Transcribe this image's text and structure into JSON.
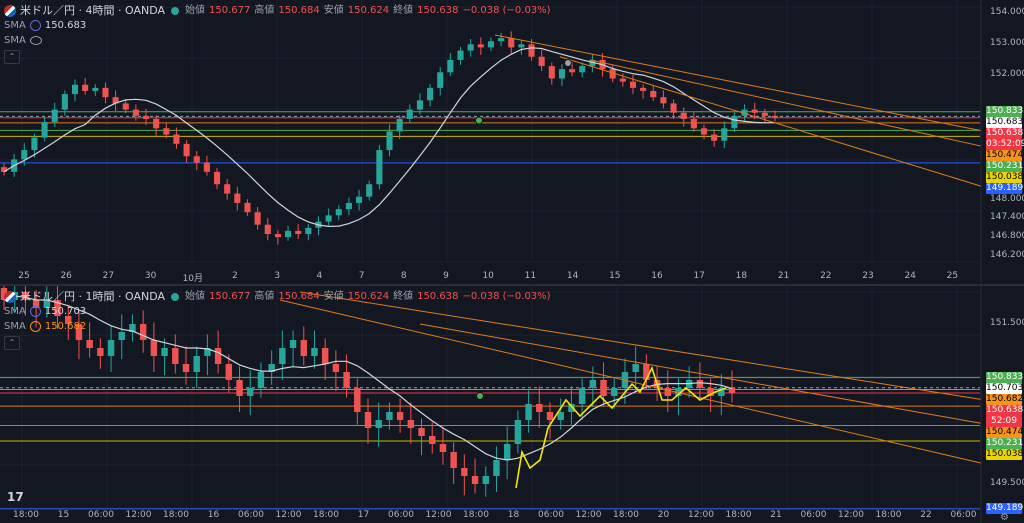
{
  "colors": {
    "bg": "#131722",
    "grid": "#1e222d",
    "up": "#26a69a",
    "down": "#ef5350",
    "sma": "#d1d4dc",
    "trend": "#e07d16",
    "yellow": "#c5b800",
    "blue": "#2962ff",
    "red_line": "#f23645",
    "green_line": "#4caf50",
    "dash": "#9aa0ab",
    "zigzag": "#f5e900"
  },
  "top_pane": {
    "title": "米ドル／円 · 4時間 · OANDA",
    "ohlc": {
      "open_label": "始値",
      "open": "150.677",
      "high_label": "高値",
      "high": "150.684",
      "low_label": "安値",
      "low": "150.624",
      "close_label": "終値",
      "close": "150.638",
      "change": "−0.038 (−0.03%)"
    },
    "sma1": {
      "label": "SMA",
      "value": "150.683"
    },
    "sma2": {
      "label": "SMA"
    },
    "collapse_glyph": "⌃",
    "y_ticks": [
      "154.000",
      "153.000",
      "152.000",
      "148.000",
      "147.400",
      "146.800",
      "146.200"
    ],
    "x_ticks": [
      "25",
      "26",
      "27",
      "30",
      "10月",
      "2",
      "3",
      "4",
      "7",
      "8",
      "9",
      "10",
      "11",
      "14",
      "15",
      "16",
      "17",
      "18",
      "21",
      "22",
      "23",
      "24",
      "25"
    ],
    "badges": [
      {
        "text": "150.833",
        "bg": "#4caf50",
        "fg": "#ffffff",
        "price": 150.833
      },
      {
        "text": "150.683",
        "bg": "#ffffff",
        "fg": "#000000",
        "price": 150.683
      },
      {
        "text": "150.638",
        "bg": "#f23645",
        "fg": "#ffffff",
        "price": 150.638
      },
      {
        "text": "03:52:09",
        "bg": "#f23645",
        "fg": "#ffffff",
        "price": 150.52
      },
      {
        "text": "150.474",
        "bg": "#f7931a",
        "fg": "#000000",
        "price": 150.474
      },
      {
        "text": "150.231",
        "bg": "#4caf50",
        "fg": "#ffffff",
        "price": 150.231
      },
      {
        "text": "150.038",
        "bg": "#e8d500",
        "fg": "#000000",
        "price": 150.038
      },
      {
        "text": "149.189",
        "bg": "#2962ff",
        "fg": "#ffffff",
        "price": 149.189
      }
    ]
  },
  "bottom_pane": {
    "title": "米ドル／円 · 1時間 · OANDA",
    "ohlc": {
      "open_label": "始値",
      "open": "150.677",
      "high_label": "高値",
      "high": "150.684",
      "low_label": "安値",
      "low": "150.624",
      "close_label": "終値",
      "close": "150.638",
      "change": "−0.038 (−0.03%)"
    },
    "sma1": {
      "label": "SMA",
      "value": "150.703"
    },
    "sma2": {
      "label": "SMA",
      "value": "150.682"
    },
    "collapse_glyph": "⌃",
    "y_ticks": [
      "151.500",
      "149.500"
    ],
    "x_ticks": [
      "18:00",
      "15",
      "06:00",
      "12:00",
      "18:00",
      "16",
      "06:00",
      "12:00",
      "18:00",
      "17",
      "06:00",
      "12:00",
      "18:00",
      "18",
      "06:00",
      "12:00",
      "18:00",
      "20",
      "12:00",
      "18:00",
      "21",
      "06:00",
      "12:00",
      "18:00",
      "22",
      "06:00"
    ],
    "badges": [
      {
        "text": "150.833",
        "bg": "#4caf50",
        "fg": "#ffffff",
        "price": 150.833
      },
      {
        "text": "150.703",
        "bg": "#ffffff",
        "fg": "#000000",
        "price": 150.703
      },
      {
        "text": "150.682",
        "bg": "#f7931a",
        "fg": "#000000",
        "price": 150.682
      },
      {
        "text": "150.638",
        "bg": "#f23645",
        "fg": "#ffffff",
        "price": 150.638
      },
      {
        "text": "52:09",
        "bg": "#f23645",
        "fg": "#ffffff",
        "price": 150.56
      },
      {
        "text": "150.474",
        "bg": "#f7931a",
        "fg": "#000000",
        "price": 150.474
      },
      {
        "text": "150.231",
        "bg": "#4caf50",
        "fg": "#ffffff",
        "price": 150.231
      },
      {
        "text": "150.038",
        "bg": "#e8d500",
        "fg": "#000000",
        "price": 150.038
      },
      {
        "text": "149.189",
        "bg": "#2962ff",
        "fg": "#ffffff",
        "price": 149.189
      }
    ]
  },
  "chart_data": [
    {
      "type": "candlestick",
      "title": "米ドル／円 · 4時間 · OANDA",
      "timeframe": "4時間",
      "x_range": [
        "9/25",
        "10/25"
      ],
      "ylim": [
        146.0,
        154.2
      ],
      "last": {
        "open": 150.677,
        "high": 150.684,
        "low": 150.624,
        "close": 150.638
      },
      "horizontal_levels": [
        150.833,
        150.683,
        150.638,
        150.474,
        150.231,
        150.038,
        149.189
      ],
      "sma": 150.683,
      "closes": [
        148.9,
        149.3,
        149.6,
        150.0,
        150.5,
        150.9,
        151.4,
        151.7,
        151.5,
        151.6,
        151.3,
        151.1,
        150.9,
        150.7,
        150.6,
        150.3,
        150.1,
        149.8,
        149.4,
        149.2,
        148.9,
        148.5,
        148.2,
        147.9,
        147.6,
        147.2,
        146.9,
        146.8,
        147.0,
        146.9,
        147.1,
        147.3,
        147.5,
        147.7,
        147.9,
        148.1,
        148.5,
        149.6,
        150.2,
        150.6,
        150.9,
        151.2,
        151.6,
        152.1,
        152.5,
        152.8,
        153.0,
        152.9,
        153.1,
        153.2,
        152.9,
        153.0,
        152.6,
        152.3,
        151.9,
        152.2,
        152.1,
        152.3,
        152.5,
        152.2,
        151.9,
        151.8,
        151.6,
        151.5,
        151.3,
        151.1,
        150.8,
        150.6,
        150.3,
        150.1,
        149.9,
        150.3,
        150.7,
        150.9,
        150.8,
        150.7,
        150.638
      ]
    },
    {
      "type": "candlestick",
      "title": "米ドル／円 · 1時間 · OANDA",
      "timeframe": "1時間",
      "x_range": [
        "10/14 18:00",
        "10/22 06:00"
      ],
      "ylim": [
        149.2,
        151.9
      ],
      "last": {
        "open": 150.677,
        "high": 150.684,
        "low": 150.624,
        "close": 150.638
      },
      "horizontal_levels": [
        150.833,
        150.703,
        150.682,
        150.638,
        150.474,
        150.231,
        150.038,
        149.189
      ],
      "sma": [
        150.703,
        150.682
      ],
      "closes": [
        151.8,
        151.9,
        151.8,
        151.7,
        151.8,
        151.6,
        151.5,
        151.3,
        151.2,
        151.1,
        151.3,
        151.4,
        151.5,
        151.3,
        151.1,
        151.2,
        151.0,
        150.9,
        151.1,
        151.2,
        151.0,
        150.8,
        150.6,
        150.7,
        150.9,
        151.0,
        151.2,
        151.3,
        151.1,
        151.2,
        151.0,
        150.9,
        150.7,
        150.4,
        150.2,
        150.3,
        150.4,
        150.3,
        150.2,
        150.1,
        150.0,
        149.9,
        149.7,
        149.6,
        149.5,
        149.6,
        149.8,
        150.0,
        150.3,
        150.5,
        150.4,
        150.3,
        150.4,
        150.5,
        150.7,
        150.8,
        150.6,
        150.7,
        150.9,
        151.0,
        150.8,
        150.7,
        150.6,
        150.7,
        150.8,
        150.7,
        150.6,
        150.7,
        150.638
      ]
    }
  ]
}
